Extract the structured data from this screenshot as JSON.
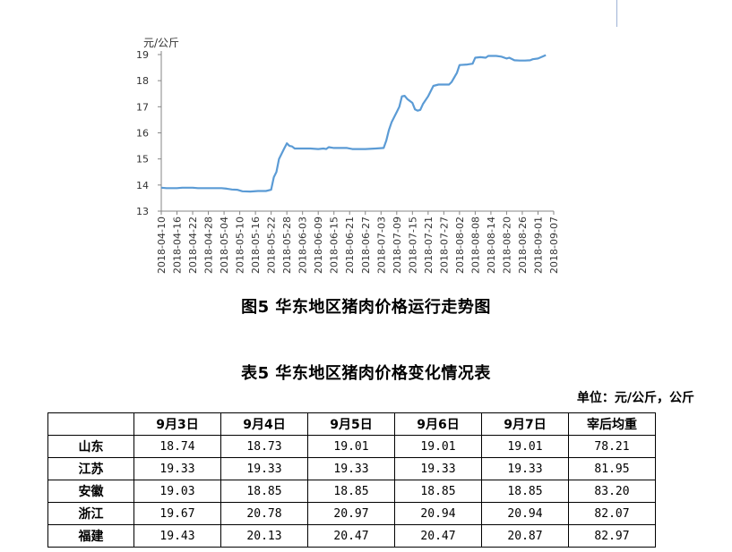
{
  "chart_data": {
    "type": "line",
    "unit_label": "元/公斤",
    "ylim": [
      13,
      19
    ],
    "yticks": [
      "13",
      "14",
      "15",
      "16",
      "17",
      "18",
      "19"
    ],
    "x_tick_labels": [
      "2018-04-10",
      "2018-04-16",
      "2018-04-22",
      "2018-04-28",
      "2018-05-04",
      "2018-05-10",
      "2018-05-16",
      "2018-05-22",
      "2018-05-28",
      "2018-06-03",
      "2018-06-09",
      "2018-06-15",
      "2018-06-21",
      "2018-06-27",
      "2018-07-03",
      "2018-07-09",
      "2018-07-15",
      "2018-07-21",
      "2018-07-27",
      "2018-08-02",
      "2018-08-08",
      "2018-08-14",
      "2018-08-20",
      "2018-08-26",
      "2018-09-01",
      "2018-09-07"
    ],
    "series": [
      {
        "color": "#5b9bd5",
        "points": [
          [
            "2018-04-10",
            13.9
          ],
          [
            "2018-04-12",
            13.88
          ],
          [
            "2018-04-14",
            13.88
          ],
          [
            "2018-04-16",
            13.88
          ],
          [
            "2018-04-18",
            13.9
          ],
          [
            "2018-04-22",
            13.9
          ],
          [
            "2018-04-24",
            13.88
          ],
          [
            "2018-04-28",
            13.88
          ],
          [
            "2018-05-03",
            13.88
          ],
          [
            "2018-05-05",
            13.86
          ],
          [
            "2018-05-07",
            13.83
          ],
          [
            "2018-05-09",
            13.82
          ],
          [
            "2018-05-11",
            13.76
          ],
          [
            "2018-05-14",
            13.75
          ],
          [
            "2018-05-17",
            13.77
          ],
          [
            "2018-05-20",
            13.77
          ],
          [
            "2018-05-22",
            13.82
          ],
          [
            "2018-05-23",
            14.3
          ],
          [
            "2018-05-24",
            14.5
          ],
          [
            "2018-05-25",
            15.0
          ],
          [
            "2018-05-27",
            15.4
          ],
          [
            "2018-05-28",
            15.6
          ],
          [
            "2018-05-29",
            15.5
          ],
          [
            "2018-05-30",
            15.48
          ],
          [
            "2018-05-31",
            15.4
          ],
          [
            "2018-06-03",
            15.4
          ],
          [
            "2018-06-06",
            15.4
          ],
          [
            "2018-06-09",
            15.38
          ],
          [
            "2018-06-11",
            15.4
          ],
          [
            "2018-06-12",
            15.38
          ],
          [
            "2018-06-13",
            15.45
          ],
          [
            "2018-06-15",
            15.42
          ],
          [
            "2018-06-20",
            15.42
          ],
          [
            "2018-06-22",
            15.38
          ],
          [
            "2018-06-27",
            15.38
          ],
          [
            "2018-07-01",
            15.4
          ],
          [
            "2018-07-04",
            15.42
          ],
          [
            "2018-07-05",
            15.7
          ],
          [
            "2018-07-06",
            16.1
          ],
          [
            "2018-07-07",
            16.4
          ],
          [
            "2018-07-09",
            16.8
          ],
          [
            "2018-07-10",
            17.0
          ],
          [
            "2018-07-11",
            17.4
          ],
          [
            "2018-07-12",
            17.42
          ],
          [
            "2018-07-13",
            17.3
          ],
          [
            "2018-07-15",
            17.15
          ],
          [
            "2018-07-16",
            16.9
          ],
          [
            "2018-07-17",
            16.85
          ],
          [
            "2018-07-18",
            16.88
          ],
          [
            "2018-07-19",
            17.1
          ],
          [
            "2018-07-21",
            17.4
          ],
          [
            "2018-07-23",
            17.8
          ],
          [
            "2018-07-25",
            17.85
          ],
          [
            "2018-07-27",
            17.85
          ],
          [
            "2018-07-29",
            17.85
          ],
          [
            "2018-07-30",
            17.95
          ],
          [
            "2018-08-01",
            18.3
          ],
          [
            "2018-08-02",
            18.6
          ],
          [
            "2018-08-05",
            18.62
          ],
          [
            "2018-08-07",
            18.65
          ],
          [
            "2018-08-08",
            18.88
          ],
          [
            "2018-08-10",
            18.9
          ],
          [
            "2018-08-12",
            18.88
          ],
          [
            "2018-08-13",
            18.95
          ],
          [
            "2018-08-16",
            18.95
          ],
          [
            "2018-08-18",
            18.92
          ],
          [
            "2018-08-20",
            18.85
          ],
          [
            "2018-08-21",
            18.88
          ],
          [
            "2018-08-23",
            18.78
          ],
          [
            "2018-08-25",
            18.77
          ],
          [
            "2018-08-27",
            18.77
          ],
          [
            "2018-08-29",
            18.78
          ],
          [
            "2018-08-30",
            18.82
          ],
          [
            "2018-09-01",
            18.85
          ],
          [
            "2018-09-04",
            18.98
          ]
        ]
      }
    ]
  },
  "figure": {
    "caption": "图5 华东地区猪肉价格运行走势图"
  },
  "table": {
    "title": "表5 华东地区猪肉价格变化情况表",
    "unit": "单位：元/公斤，公斤",
    "header": {
      "corner": "",
      "cols": [
        "9月3日",
        "9月4日",
        "9月5日",
        "9月6日",
        "9月7日",
        "宰后均重"
      ]
    },
    "rows": [
      {
        "region": "山东",
        "values": [
          "18.74",
          "18.73",
          "19.01",
          "19.01",
          "19.01",
          "78.21"
        ]
      },
      {
        "region": "江苏",
        "values": [
          "19.33",
          "19.33",
          "19.33",
          "19.33",
          "19.33",
          "81.95"
        ]
      },
      {
        "region": "安徽",
        "values": [
          "19.03",
          "18.85",
          "18.85",
          "18.85",
          "18.85",
          "83.20"
        ]
      },
      {
        "region": "浙江",
        "values": [
          "19.67",
          "20.78",
          "20.97",
          "20.94",
          "20.94",
          "82.07"
        ]
      },
      {
        "region": "福建",
        "values": [
          "19.43",
          "20.13",
          "20.47",
          "20.47",
          "20.87",
          "82.97"
        ]
      }
    ]
  }
}
